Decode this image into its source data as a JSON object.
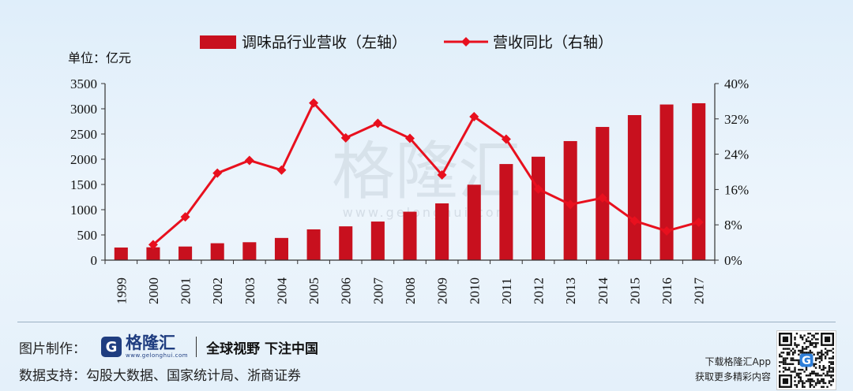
{
  "unit_label": "单位：亿元",
  "watermark": {
    "text": "格隆汇",
    "url": "www.gelonghui.com"
  },
  "chart_data": {
    "type": "bar+line",
    "categories": [
      "1999",
      "2000",
      "2001",
      "2002",
      "2003",
      "2004",
      "2005",
      "2006",
      "2007",
      "2008",
      "2009",
      "2010",
      "2011",
      "2012",
      "2013",
      "2014",
      "2015",
      "2016",
      "2017"
    ],
    "series": [
      {
        "name": "调味品行业营收（左轴）",
        "type": "bar",
        "axis": "left",
        "color": "#c8101e",
        "values": [
          250,
          255,
          270,
          335,
          355,
          440,
          610,
          670,
          765,
          960,
          1125,
          1495,
          1905,
          2050,
          2360,
          2640,
          2875,
          3085,
          3110
        ]
      },
      {
        "name": "营收同比（右轴）",
        "type": "line",
        "axis": "right",
        "color": "#e8101e",
        "values": [
          null,
          3.5,
          9.8,
          19.7,
          22.6,
          20.4,
          35.6,
          27.7,
          31.0,
          27.6,
          19.3,
          32.5,
          27.4,
          16.1,
          12.6,
          14.1,
          8.9,
          6.6,
          8.6
        ]
      }
    ],
    "y_left": {
      "min": 0,
      "max": 3500,
      "ticks": [
        "0",
        "500",
        "1000",
        "1500",
        "2000",
        "2500",
        "3000",
        "3500"
      ]
    },
    "y_right": {
      "min": 0,
      "max": 40,
      "ticks": [
        "0%",
        "8%",
        "16%",
        "24%",
        "32%",
        "40%"
      ]
    },
    "legend_position": "top-center",
    "grid": false
  },
  "footer": {
    "credit_label": "图片制作：",
    "logo_mark": "G",
    "logo_name": "格隆汇",
    "logo_url": "www.gelonghui.com",
    "slogan": "全球视野 下注中国",
    "source_text": "数据支持：勾股大数据、国家统计局、浙商证券",
    "app_line1": "下载格隆汇App",
    "app_line2": "获取更多精彩内容"
  },
  "colors": {
    "bar": "#c8101e",
    "line": "#e8101e",
    "axis": "#333333"
  }
}
